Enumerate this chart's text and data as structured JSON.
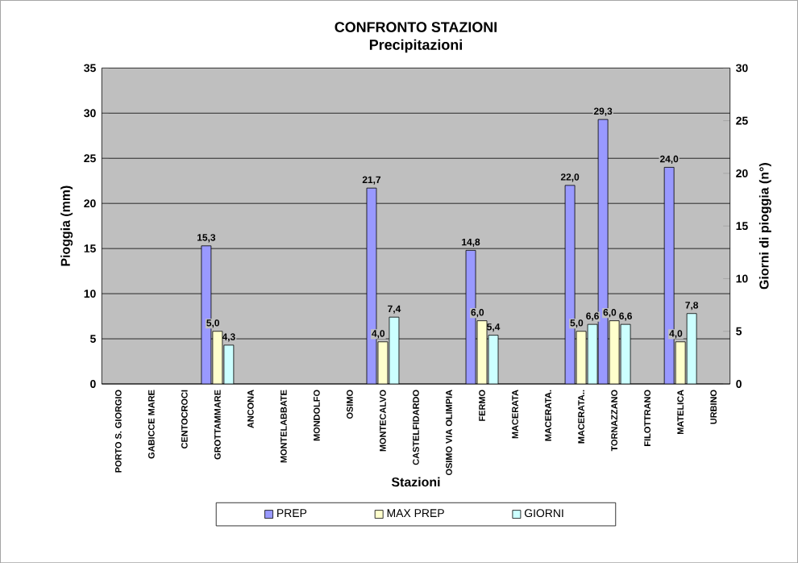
{
  "chart_data": {
    "type": "bar",
    "title": "CONFRONTO STAZIONI",
    "subtitle": "Precipitazioni",
    "xlabel": "Stazioni",
    "ylabel": "Pioggia (mm)",
    "y2label": "Giorni di pioggia (n°)",
    "categories": [
      "PORTO S. GIORGIO",
      "GABICCE MARE",
      "CENTOCROCI",
      "GROTTAMMARE",
      "ANCONA",
      "MONTELABBATE",
      "MONDOLFO",
      "OSIMO",
      "MONTECALVO",
      "CASTELFIDARDO",
      "OSIMO VIA OLIMPIA",
      "FERMO",
      "MACERATA",
      "MACERATA.",
      "MACERATA..",
      "TORNAZZANO",
      "FILOTTRANO",
      "MATELICA",
      "URBINO"
    ],
    "series": [
      {
        "name": "PREP",
        "color": "#9999ff",
        "values": [
          null,
          null,
          null,
          15.3,
          null,
          null,
          null,
          null,
          21.7,
          null,
          null,
          14.8,
          null,
          null,
          22.0,
          29.3,
          null,
          24.0,
          null
        ],
        "value_labels": [
          null,
          null,
          null,
          "15,3",
          null,
          null,
          null,
          null,
          "21,7",
          null,
          null,
          "14,8",
          null,
          null,
          "22,0",
          "29,3",
          null,
          "24,0",
          null
        ]
      },
      {
        "name": "MAX PREP",
        "color": "#ffffcc",
        "axis": "y2",
        "values": [
          null,
          null,
          null,
          5.0,
          null,
          null,
          null,
          null,
          4.0,
          null,
          null,
          6.0,
          null,
          null,
          5.0,
          6.0,
          null,
          4.0,
          null
        ],
        "value_labels": [
          null,
          null,
          null,
          "5,0",
          null,
          null,
          null,
          null,
          "4,0",
          null,
          null,
          "6,0",
          null,
          null,
          "5,0",
          "6,0",
          null,
          "4,0",
          null
        ]
      },
      {
        "name": "GIORNI",
        "color": "#ccffff",
        "values": [
          null,
          null,
          null,
          4.3,
          null,
          null,
          null,
          null,
          7.4,
          null,
          null,
          5.4,
          null,
          null,
          6.6,
          6.6,
          null,
          7.8,
          null
        ],
        "value_labels": [
          null,
          null,
          null,
          "4,3",
          null,
          null,
          null,
          null,
          "7,4",
          null,
          null,
          "5,4",
          null,
          null,
          "6,6",
          "6,6",
          null,
          "7,8",
          null
        ]
      }
    ],
    "ylim": [
      0,
      35
    ],
    "yticks": [
      0,
      5,
      10,
      15,
      20,
      25,
      30,
      35
    ],
    "y2lim": [
      0,
      30
    ],
    "y2ticks": [
      0,
      5,
      10,
      15,
      20,
      25,
      30
    ],
    "grid": "y",
    "legend": "bottom"
  }
}
